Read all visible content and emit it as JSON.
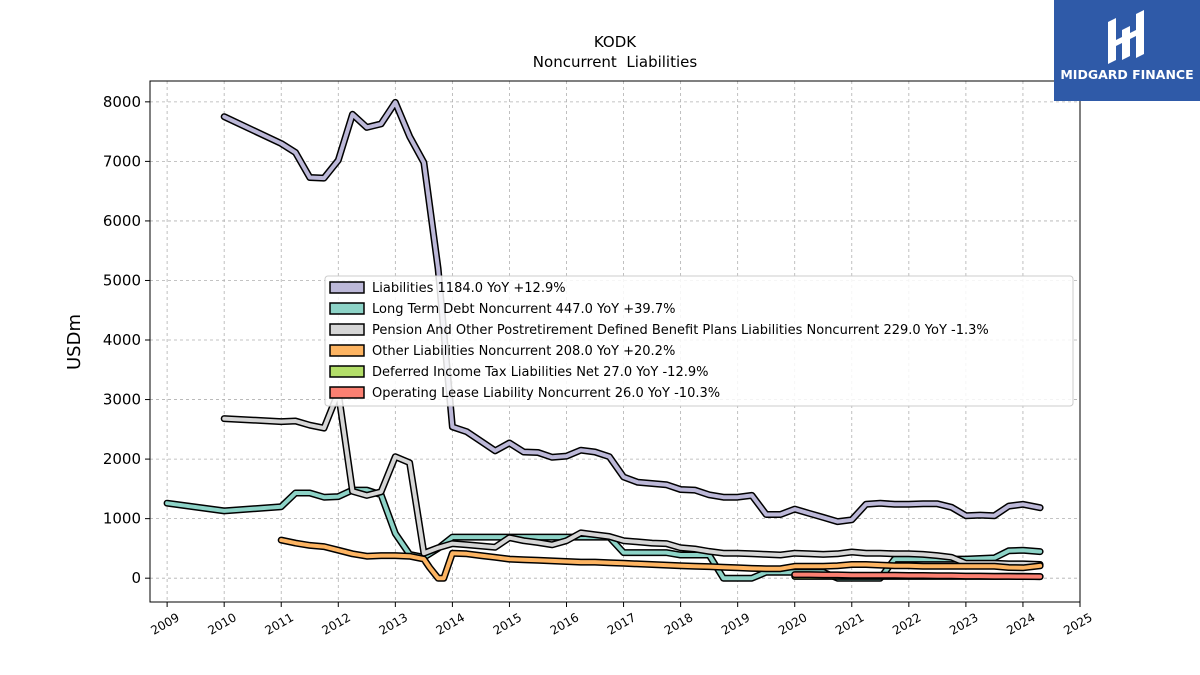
{
  "chart_data": {
    "type": "line",
    "title": "KODK",
    "subtitle": "Noncurrent  Liabilities",
    "ylabel": "USDm",
    "xlabel": "",
    "xlim": [
      2008.7,
      2025.0
    ],
    "ylim": [
      -400,
      8350
    ],
    "x_ticks": [
      2009,
      2010,
      2011,
      2012,
      2013,
      2014,
      2015,
      2016,
      2017,
      2018,
      2019,
      2020,
      2021,
      2022,
      2023,
      2024,
      2025
    ],
    "x_tick_labels": [
      "2009",
      "2010",
      "2011",
      "2012",
      "2013",
      "2014",
      "2015",
      "2016",
      "2017",
      "2018",
      "2019",
      "2020",
      "2021",
      "2022",
      "2023",
      "2024",
      "2025"
    ],
    "y_ticks": [
      0,
      1000,
      2000,
      3000,
      4000,
      5000,
      6000,
      7000,
      8000
    ],
    "y_tick_labels": [
      "0",
      "1000",
      "2000",
      "3000",
      "4000",
      "5000",
      "6000",
      "7000",
      "8000"
    ],
    "grid": true,
    "legend_position": "center-right",
    "series": [
      {
        "name": "Liabilities  1184.0 YoY +12.9%",
        "color": "#bcb8d8",
        "points": [
          [
            2010.0,
            7750
          ],
          [
            2011.0,
            7300
          ],
          [
            2011.25,
            7150
          ],
          [
            2011.5,
            6730
          ],
          [
            2011.75,
            6720
          ],
          [
            2012.0,
            7020
          ],
          [
            2012.25,
            7790
          ],
          [
            2012.5,
            7570
          ],
          [
            2012.75,
            7630
          ],
          [
            2013.0,
            7990
          ],
          [
            2013.25,
            7420
          ],
          [
            2013.5,
            6980
          ],
          [
            2013.75,
            5200
          ],
          [
            2014.0,
            2540
          ],
          [
            2014.25,
            2460
          ],
          [
            2014.5,
            2300
          ],
          [
            2014.75,
            2140
          ],
          [
            2015.0,
            2270
          ],
          [
            2015.25,
            2120
          ],
          [
            2015.5,
            2110
          ],
          [
            2015.75,
            2030
          ],
          [
            2016.0,
            2050
          ],
          [
            2016.25,
            2150
          ],
          [
            2016.5,
            2120
          ],
          [
            2016.75,
            2040
          ],
          [
            2017.0,
            1700
          ],
          [
            2017.25,
            1610
          ],
          [
            2017.5,
            1590
          ],
          [
            2017.75,
            1570
          ],
          [
            2018.0,
            1490
          ],
          [
            2018.25,
            1480
          ],
          [
            2018.5,
            1400
          ],
          [
            2018.75,
            1360
          ],
          [
            2019.0,
            1360
          ],
          [
            2019.25,
            1390
          ],
          [
            2019.5,
            1070
          ],
          [
            2019.75,
            1070
          ],
          [
            2020.0,
            1160
          ],
          [
            2020.25,
            1090
          ],
          [
            2020.5,
            1020
          ],
          [
            2020.75,
            950
          ],
          [
            2021.0,
            980
          ],
          [
            2021.25,
            1240
          ],
          [
            2021.5,
            1260
          ],
          [
            2021.75,
            1240
          ],
          [
            2022.0,
            1240
          ],
          [
            2022.25,
            1250
          ],
          [
            2022.5,
            1250
          ],
          [
            2022.75,
            1190
          ],
          [
            2023.0,
            1050
          ],
          [
            2023.25,
            1060
          ],
          [
            2023.5,
            1050
          ],
          [
            2023.75,
            1210
          ],
          [
            2024.0,
            1240
          ],
          [
            2024.3,
            1184
          ]
        ]
      },
      {
        "name": "Long Term Debt Noncurrent  447.0 YoY +39.7%",
        "color": "#8dd3c7",
        "points": [
          [
            2009.0,
            1260
          ],
          [
            2010.0,
            1130
          ],
          [
            2011.0,
            1200
          ],
          [
            2011.25,
            1430
          ],
          [
            2011.5,
            1430
          ],
          [
            2011.75,
            1360
          ],
          [
            2012.0,
            1370
          ],
          [
            2012.25,
            1480
          ],
          [
            2012.5,
            1480
          ],
          [
            2012.75,
            1400
          ],
          [
            2013.0,
            750
          ],
          [
            2013.25,
            400
          ],
          [
            2013.5,
            350
          ],
          [
            2013.75,
            500
          ],
          [
            2014.0,
            690
          ],
          [
            2014.25,
            690
          ],
          [
            2014.5,
            690
          ],
          [
            2014.75,
            690
          ],
          [
            2015.0,
            690
          ],
          [
            2015.25,
            690
          ],
          [
            2015.5,
            690
          ],
          [
            2015.75,
            690
          ],
          [
            2016.0,
            690
          ],
          [
            2016.25,
            690
          ],
          [
            2016.5,
            690
          ],
          [
            2016.75,
            690
          ],
          [
            2017.0,
            430
          ],
          [
            2017.25,
            430
          ],
          [
            2017.5,
            430
          ],
          [
            2017.75,
            430
          ],
          [
            2018.0,
            390
          ],
          [
            2018.25,
            390
          ],
          [
            2018.5,
            390
          ],
          [
            2018.75,
            0
          ],
          [
            2019.0,
            0
          ],
          [
            2019.25,
            0
          ],
          [
            2019.5,
            100
          ],
          [
            2019.75,
            100
          ],
          [
            2020.0,
            100
          ],
          [
            2020.25,
            100
          ],
          [
            2020.5,
            100
          ],
          [
            2020.75,
            0
          ],
          [
            2021.0,
            0
          ],
          [
            2021.25,
            0
          ],
          [
            2021.5,
            0
          ],
          [
            2021.75,
            320
          ],
          [
            2022.0,
            320
          ],
          [
            2022.25,
            320
          ],
          [
            2022.5,
            320
          ],
          [
            2022.75,
            320
          ],
          [
            2023.0,
            320
          ],
          [
            2023.25,
            330
          ],
          [
            2023.5,
            340
          ],
          [
            2023.75,
            460
          ],
          [
            2024.0,
            470
          ],
          [
            2024.3,
            447
          ]
        ]
      },
      {
        "name": "Pension And Other Postretirement Defined Benefit Plans Liabilities Noncurrent  229.0 YoY -1.3%",
        "color": "#d6d6d6",
        "points": [
          [
            2010.0,
            2680
          ],
          [
            2011.0,
            2630
          ],
          [
            2011.25,
            2640
          ],
          [
            2011.5,
            2570
          ],
          [
            2011.75,
            2520
          ],
          [
            2012.0,
            3120
          ],
          [
            2012.25,
            1460
          ],
          [
            2012.5,
            1390
          ],
          [
            2012.75,
            1450
          ],
          [
            2013.0,
            2040
          ],
          [
            2013.25,
            1940
          ],
          [
            2013.5,
            420
          ],
          [
            2013.75,
            510
          ],
          [
            2014.0,
            580
          ],
          [
            2014.25,
            560
          ],
          [
            2014.5,
            540
          ],
          [
            2014.75,
            520
          ],
          [
            2015.0,
            680
          ],
          [
            2015.25,
            630
          ],
          [
            2015.5,
            600
          ],
          [
            2015.75,
            560
          ],
          [
            2016.0,
            630
          ],
          [
            2016.25,
            760
          ],
          [
            2016.5,
            730
          ],
          [
            2016.75,
            700
          ],
          [
            2017.0,
            630
          ],
          [
            2017.25,
            610
          ],
          [
            2017.5,
            590
          ],
          [
            2017.75,
            580
          ],
          [
            2018.0,
            510
          ],
          [
            2018.25,
            490
          ],
          [
            2018.5,
            450
          ],
          [
            2018.75,
            420
          ],
          [
            2019.0,
            420
          ],
          [
            2019.25,
            410
          ],
          [
            2019.5,
            400
          ],
          [
            2019.75,
            390
          ],
          [
            2020.0,
            420
          ],
          [
            2020.25,
            410
          ],
          [
            2020.5,
            400
          ],
          [
            2020.75,
            410
          ],
          [
            2021.0,
            440
          ],
          [
            2021.25,
            420
          ],
          [
            2021.5,
            420
          ],
          [
            2021.75,
            410
          ],
          [
            2022.0,
            410
          ],
          [
            2022.25,
            400
          ],
          [
            2022.5,
            380
          ],
          [
            2022.75,
            350
          ],
          [
            2023.0,
            250
          ],
          [
            2023.25,
            250
          ],
          [
            2023.5,
            250
          ],
          [
            2023.75,
            240
          ],
          [
            2024.0,
            240
          ],
          [
            2024.3,
            229
          ]
        ]
      },
      {
        "name": "Other Liabilities Noncurrent  208.0 YoY +20.2%",
        "color": "#fdb462",
        "points": [
          [
            2011.0,
            640
          ],
          [
            2011.25,
            590
          ],
          [
            2011.5,
            550
          ],
          [
            2011.75,
            530
          ],
          [
            2012.0,
            470
          ],
          [
            2012.25,
            410
          ],
          [
            2012.5,
            370
          ],
          [
            2012.75,
            380
          ],
          [
            2013.0,
            380
          ],
          [
            2013.25,
            370
          ],
          [
            2013.5,
            320
          ],
          [
            2013.6,
            180
          ],
          [
            2013.75,
            0
          ],
          [
            2013.85,
            0
          ],
          [
            2014.0,
            420
          ],
          [
            2014.25,
            410
          ],
          [
            2014.5,
            380
          ],
          [
            2014.75,
            350
          ],
          [
            2015.0,
            320
          ],
          [
            2015.25,
            310
          ],
          [
            2015.5,
            300
          ],
          [
            2015.75,
            290
          ],
          [
            2016.0,
            280
          ],
          [
            2016.25,
            270
          ],
          [
            2016.5,
            270
          ],
          [
            2016.75,
            260
          ],
          [
            2017.0,
            250
          ],
          [
            2017.25,
            240
          ],
          [
            2017.5,
            230
          ],
          [
            2017.75,
            220
          ],
          [
            2018.0,
            210
          ],
          [
            2018.25,
            200
          ],
          [
            2018.5,
            195
          ],
          [
            2018.75,
            185
          ],
          [
            2019.0,
            175
          ],
          [
            2019.25,
            165
          ],
          [
            2019.5,
            160
          ],
          [
            2019.75,
            160
          ],
          [
            2020.0,
            200
          ],
          [
            2020.25,
            200
          ],
          [
            2020.5,
            200
          ],
          [
            2020.75,
            210
          ],
          [
            2021.0,
            230
          ],
          [
            2021.25,
            230
          ],
          [
            2021.5,
            220
          ],
          [
            2021.75,
            210
          ],
          [
            2022.0,
            210
          ],
          [
            2022.25,
            200
          ],
          [
            2022.5,
            200
          ],
          [
            2022.75,
            200
          ],
          [
            2023.0,
            200
          ],
          [
            2023.25,
            200
          ],
          [
            2023.5,
            200
          ],
          [
            2023.75,
            180
          ],
          [
            2024.0,
            175
          ],
          [
            2024.3,
            208
          ]
        ]
      },
      {
        "name": "Deferred Income Tax Liabilities Net  27.0 YoY -12.9%",
        "color": "#b3de69",
        "points": [
          [
            2020.0,
            30
          ],
          [
            2020.25,
            30
          ],
          [
            2020.5,
            30
          ],
          [
            2020.75,
            30
          ],
          [
            2021.0,
            30
          ],
          [
            2021.25,
            30
          ],
          [
            2021.5,
            30
          ],
          [
            2021.75,
            30
          ],
          [
            2022.0,
            30
          ],
          [
            2022.25,
            30
          ],
          [
            2022.5,
            30
          ],
          [
            2022.75,
            30
          ],
          [
            2023.0,
            30
          ],
          [
            2023.25,
            30
          ],
          [
            2023.5,
            30
          ],
          [
            2023.75,
            31
          ],
          [
            2024.0,
            31
          ],
          [
            2024.3,
            27
          ]
        ]
      },
      {
        "name": "Operating Lease Liability Noncurrent  26.0 YoY -10.3%",
        "color": "#fb8072",
        "points": [
          [
            2020.0,
            60
          ],
          [
            2020.25,
            60
          ],
          [
            2020.5,
            55
          ],
          [
            2020.75,
            55
          ],
          [
            2021.0,
            50
          ],
          [
            2021.25,
            50
          ],
          [
            2021.5,
            50
          ],
          [
            2021.75,
            50
          ],
          [
            2022.0,
            45
          ],
          [
            2022.25,
            45
          ],
          [
            2022.5,
            40
          ],
          [
            2022.75,
            40
          ],
          [
            2023.0,
            35
          ],
          [
            2023.25,
            35
          ],
          [
            2023.5,
            30
          ],
          [
            2023.75,
            30
          ],
          [
            2024.0,
            29
          ],
          [
            2024.3,
            26
          ]
        ]
      }
    ]
  },
  "logo": {
    "text": "MIDGARD FINANCE",
    "color": "#2f5aa8"
  }
}
